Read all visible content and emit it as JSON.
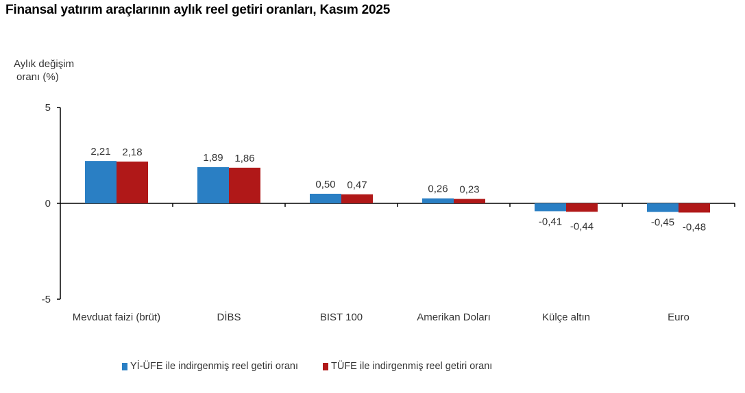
{
  "title": "Finansal yatırım araçlarının aylık reel getiri oranları, Kasım 2025",
  "y_axis_label": [
    "Aylık değişim",
    "oranı (%)"
  ],
  "legend": [
    {
      "label": "Yİ-ÜFE ile indirgenmiş reel getiri oranı",
      "color": "#2a7fc4"
    },
    {
      "label": "TÜFE ile indirgenmiş reel getiri oranı",
      "color": "#b01818"
    }
  ],
  "chart_data": {
    "type": "bar",
    "title": "Finansal yatırım araçlarının aylık reel getiri oranları, Kasım 2025",
    "xlabel": "",
    "ylabel": "Aylık değişim oranı (%)",
    "ylim": [
      -5,
      5
    ],
    "yticks": [
      5,
      0,
      -5
    ],
    "grid": false,
    "legend_position": "bottom",
    "categories": [
      "Mevduat faizi (brüt)",
      "DİBS",
      "BIST 100",
      "Amerikan Doları",
      "Külçe altın",
      "Euro"
    ],
    "series": [
      {
        "name": "Yİ-ÜFE ile indirgenmiş reel getiri oranı",
        "color": "#2a7fc4",
        "values": [
          2.21,
          1.89,
          0.5,
          0.26,
          -0.41,
          -0.45
        ],
        "labels": [
          "2,21",
          "1,89",
          "0,50",
          "0,26",
          "-0,41",
          "-0,45"
        ]
      },
      {
        "name": "TÜFE ile indirgenmiş reel getiri oranı",
        "color": "#b01818",
        "values": [
          2.18,
          1.86,
          0.47,
          0.23,
          -0.44,
          -0.48
        ],
        "labels": [
          "2,18",
          "1,86",
          "0,47",
          "0,23",
          "-0,44",
          "-0,48"
        ]
      }
    ]
  }
}
